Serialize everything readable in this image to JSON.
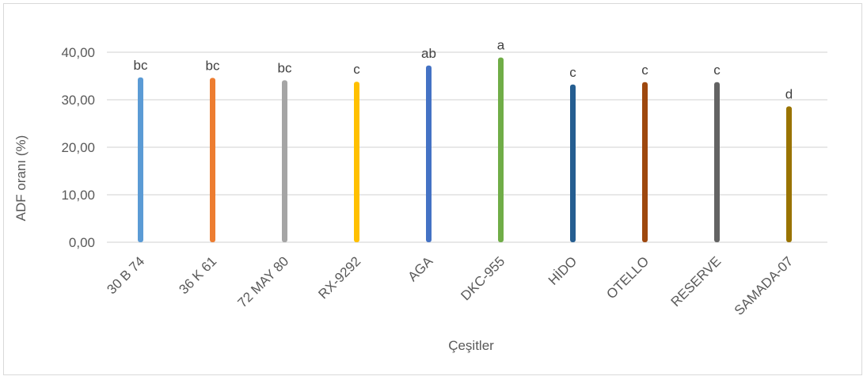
{
  "chart_data": {
    "type": "bar",
    "title": "",
    "xlabel": "Çeşitler",
    "ylabel": "ADF oranı (%)",
    "ylim": [
      0,
      40
    ],
    "yticks": [
      "0,00",
      "10,00",
      "20,00",
      "30,00",
      "40,00"
    ],
    "grid": true,
    "legend": "none",
    "categories": [
      "30 B 74",
      "36 K 61",
      "72 MAY 80",
      "RX-9292",
      "AGA",
      "DKC-955",
      "HİDO",
      "OTELLO",
      "RESERVE",
      "SAMADA-07"
    ],
    "values": [
      34.7,
      34.6,
      34.1,
      33.8,
      37.2,
      38.9,
      33.2,
      33.7,
      33.7,
      28.6
    ],
    "significance_labels": [
      "bc",
      "bc",
      "bc",
      "c",
      "ab",
      "a",
      "c",
      "c",
      "c",
      "d"
    ],
    "colors": [
      "#5b9bd5",
      "#ed7d31",
      "#a5a5a5",
      "#ffc000",
      "#4472c4",
      "#70ad47",
      "#255e91",
      "#9e480e",
      "#636363",
      "#997300"
    ]
  }
}
